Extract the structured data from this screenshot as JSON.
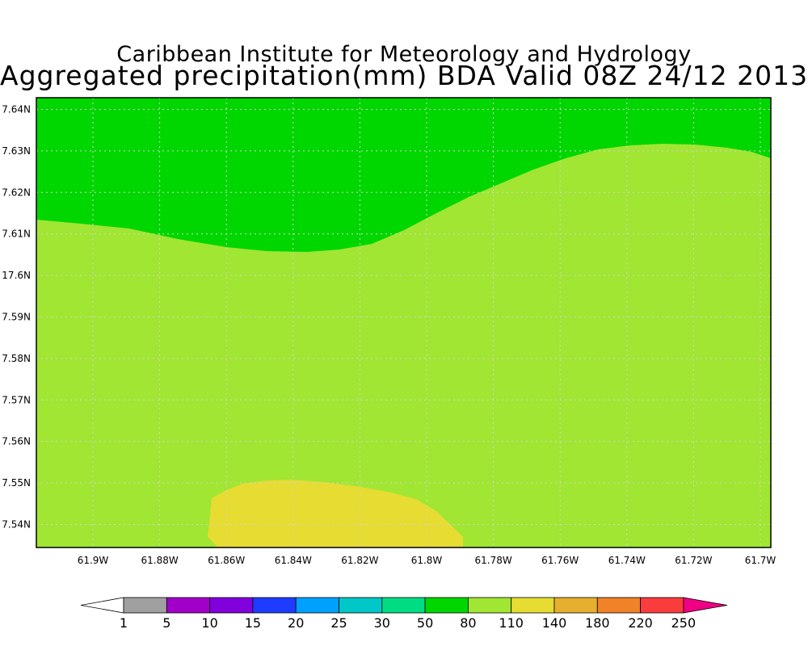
{
  "header": {
    "institute": "Caribbean Institute for Meteorology and Hydrology",
    "product": "Aggregated precipitation(mm) BDA Valid 08Z 24/12 2013"
  },
  "map": {
    "lat_labels": [
      "7.64N",
      "7.63N",
      "7.62N",
      "7.61N",
      "17.6N",
      "7.59N",
      "7.58N",
      "7.57N",
      "7.56N",
      "7.55N",
      "7.54N"
    ],
    "lon_labels": [
      "61.9W",
      "61.88W",
      "61.86W",
      "61.84W",
      "61.82W",
      "61.8W",
      "61.78W",
      "61.76W",
      "61.74W",
      "61.72W",
      "61.7W"
    ],
    "fill_colors": {
      "band_50_80": "#00d600",
      "band_80_110": "#a0e632",
      "band_110_140": "#e6dc32"
    }
  },
  "colorbar": {
    "labels": [
      "1",
      "5",
      "10",
      "15",
      "20",
      "25",
      "30",
      "50",
      "80",
      "110",
      "140",
      "180",
      "220",
      "250"
    ],
    "colors": [
      "#a0a0a0",
      "#a000c8",
      "#8200dc",
      "#1e3cff",
      "#00a0ff",
      "#00c8c8",
      "#00dc82",
      "#00d600",
      "#a0e632",
      "#e6dc32",
      "#e6af2d",
      "#f08228",
      "#fa3c3c"
    ],
    "under_color": "#ffffff",
    "over_color": "#f00082"
  }
}
